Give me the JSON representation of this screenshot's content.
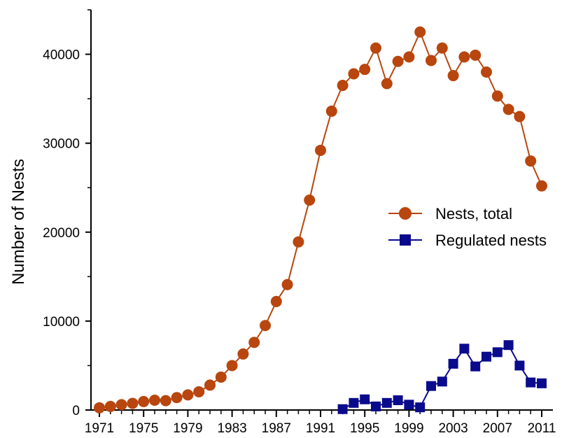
{
  "chart_data": {
    "type": "line",
    "title": "",
    "xlabel": "",
    "ylabel": "Number of Nests",
    "xlim": [
      1971,
      2011
    ],
    "ylim": [
      0,
      45000
    ],
    "x_ticks": [
      1971,
      1975,
      1979,
      1983,
      1987,
      1991,
      1995,
      1999,
      2003,
      2007,
      2011
    ],
    "y_ticks": [
      0,
      10000,
      20000,
      30000,
      40000
    ],
    "grid": false,
    "legend_position": "right",
    "series": [
      {
        "name": "Nests, total",
        "color": "#B8460E",
        "marker": "circle",
        "x": [
          1971,
          1972,
          1973,
          1974,
          1975,
          1976,
          1977,
          1978,
          1979,
          1980,
          1981,
          1982,
          1983,
          1984,
          1985,
          1986,
          1987,
          1988,
          1989,
          1990,
          1991,
          1992,
          1993,
          1994,
          1995,
          1996,
          1997,
          1998,
          1999,
          2000,
          2001,
          2002,
          2003,
          2004,
          2005,
          2006,
          2007,
          2008,
          2009,
          2010,
          2011
        ],
        "values": [
          250,
          400,
          600,
          750,
          950,
          1100,
          1050,
          1400,
          1700,
          2050,
          2800,
          3700,
          5000,
          6300,
          7600,
          9500,
          12200,
          14100,
          18900,
          23600,
          29200,
          33600,
          36500,
          37800,
          38300,
          40700,
          36700,
          39200,
          39700,
          42500,
          39300,
          40700,
          37600,
          39700,
          39900,
          38000,
          35300,
          33800,
          33000,
          28000,
          25200
        ]
      },
      {
        "name": "Regulated nests",
        "color": "#0A0A8C",
        "marker": "square",
        "x": [
          1993,
          1994,
          1995,
          1996,
          1997,
          1998,
          1999,
          2000,
          2001,
          2002,
          2003,
          2004,
          2005,
          2006,
          2007,
          2008,
          2009,
          2010,
          2011
        ],
        "values": [
          100,
          800,
          1200,
          400,
          800,
          1100,
          600,
          300,
          2700,
          3200,
          5200,
          6900,
          4900,
          6000,
          6500,
          7300,
          5000,
          3100,
          3000
        ]
      }
    ]
  }
}
